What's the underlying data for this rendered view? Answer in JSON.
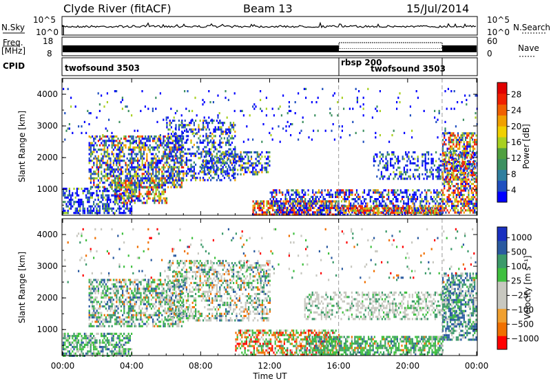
{
  "header": {
    "station": "Clyde River (fitACF)",
    "beam": "Beam 13",
    "date": "15/Jul/2014"
  },
  "strip_panels": {
    "nsky_label": "N.Sky",
    "nsky_ticks": [
      "10^5",
      "10^0"
    ],
    "nsearch_label": "N.Search",
    "nsearch_ticks": [
      "10^5",
      "10^0"
    ],
    "freq_label_1": "Freq.",
    "freq_label_2": "[MHz]",
    "freq_ticks": [
      "18",
      "8"
    ],
    "nave_label": "Nave",
    "nave_ticks": [
      "60",
      "0"
    ],
    "cpid_label": "CPID",
    "cpid_segments": [
      {
        "label": "twofsound 3503",
        "start_hour": 0,
        "end_hour": 16
      },
      {
        "label": "rbsp 200",
        "start_hour": 16,
        "end_hour": 22
      },
      {
        "label": "twofsound 3503",
        "start_hour": 22,
        "end_hour": 24
      }
    ]
  },
  "chart_data": [
    {
      "type": "heatmap",
      "quantity": "Power",
      "colorbar_label": "Power [dB]",
      "ylabel": "Slant Range [km]",
      "xlabel": "Time UT",
      "x_range_hours": [
        0,
        24
      ],
      "ylim": [
        180,
        4500
      ],
      "y_ticks": [
        1000,
        2000,
        3000,
        4000
      ],
      "colorbar_ticks": [
        "28",
        "24",
        "20",
        "16",
        "12",
        "8",
        "4"
      ],
      "colorbar_colors": [
        "#0000ff",
        "#1f4fbf",
        "#2f7f9f",
        "#3c9060",
        "#50a040",
        "#a8d020",
        "#f0d000",
        "#f0a000",
        "#f06000",
        "#f02000",
        "#e00000"
      ],
      "colorbar_range": [
        0,
        32
      ]
    },
    {
      "type": "heatmap",
      "quantity": "Velocity",
      "colorbar_label": "Velocity [m s⁻¹]",
      "ylabel": "Slant Range [km]",
      "xlabel": "Time UT",
      "x_range_hours": [
        0,
        24
      ],
      "ylim": [
        180,
        4500
      ],
      "y_ticks": [
        1000,
        2000,
        3000,
        4000
      ],
      "colorbar_ticks": [
        "1000",
        "500",
        "100",
        "25",
        "−25",
        "−100",
        "−500",
        "−1000"
      ],
      "colorbar_colors": [
        "#ff0000",
        "#f07000",
        "#f0a030",
        "#c8c8c0",
        "#c8c8c0",
        "#40c040",
        "#3c9a6a",
        "#2a5aa0",
        "#1a30c0"
      ]
    }
  ],
  "time_axis": {
    "label": "Time UT",
    "ticks": [
      "00:00",
      "04:00",
      "08:00",
      "12:00",
      "16:00",
      "20:00",
      "00:00"
    ]
  },
  "colors": {
    "power_scale": [
      "#0000ff",
      "#1f4fbf",
      "#2f7f9f",
      "#3c9060",
      "#50a040",
      "#a8d020",
      "#f0d000",
      "#f0a000",
      "#f06000",
      "#f02000",
      "#e00000"
    ],
    "velocity_scale": [
      "#ff0000",
      "#f07000",
      "#f0a030",
      "#c8c8c0",
      "#40c040",
      "#3c9a6a",
      "#2a5aa0",
      "#1a30c0"
    ]
  }
}
